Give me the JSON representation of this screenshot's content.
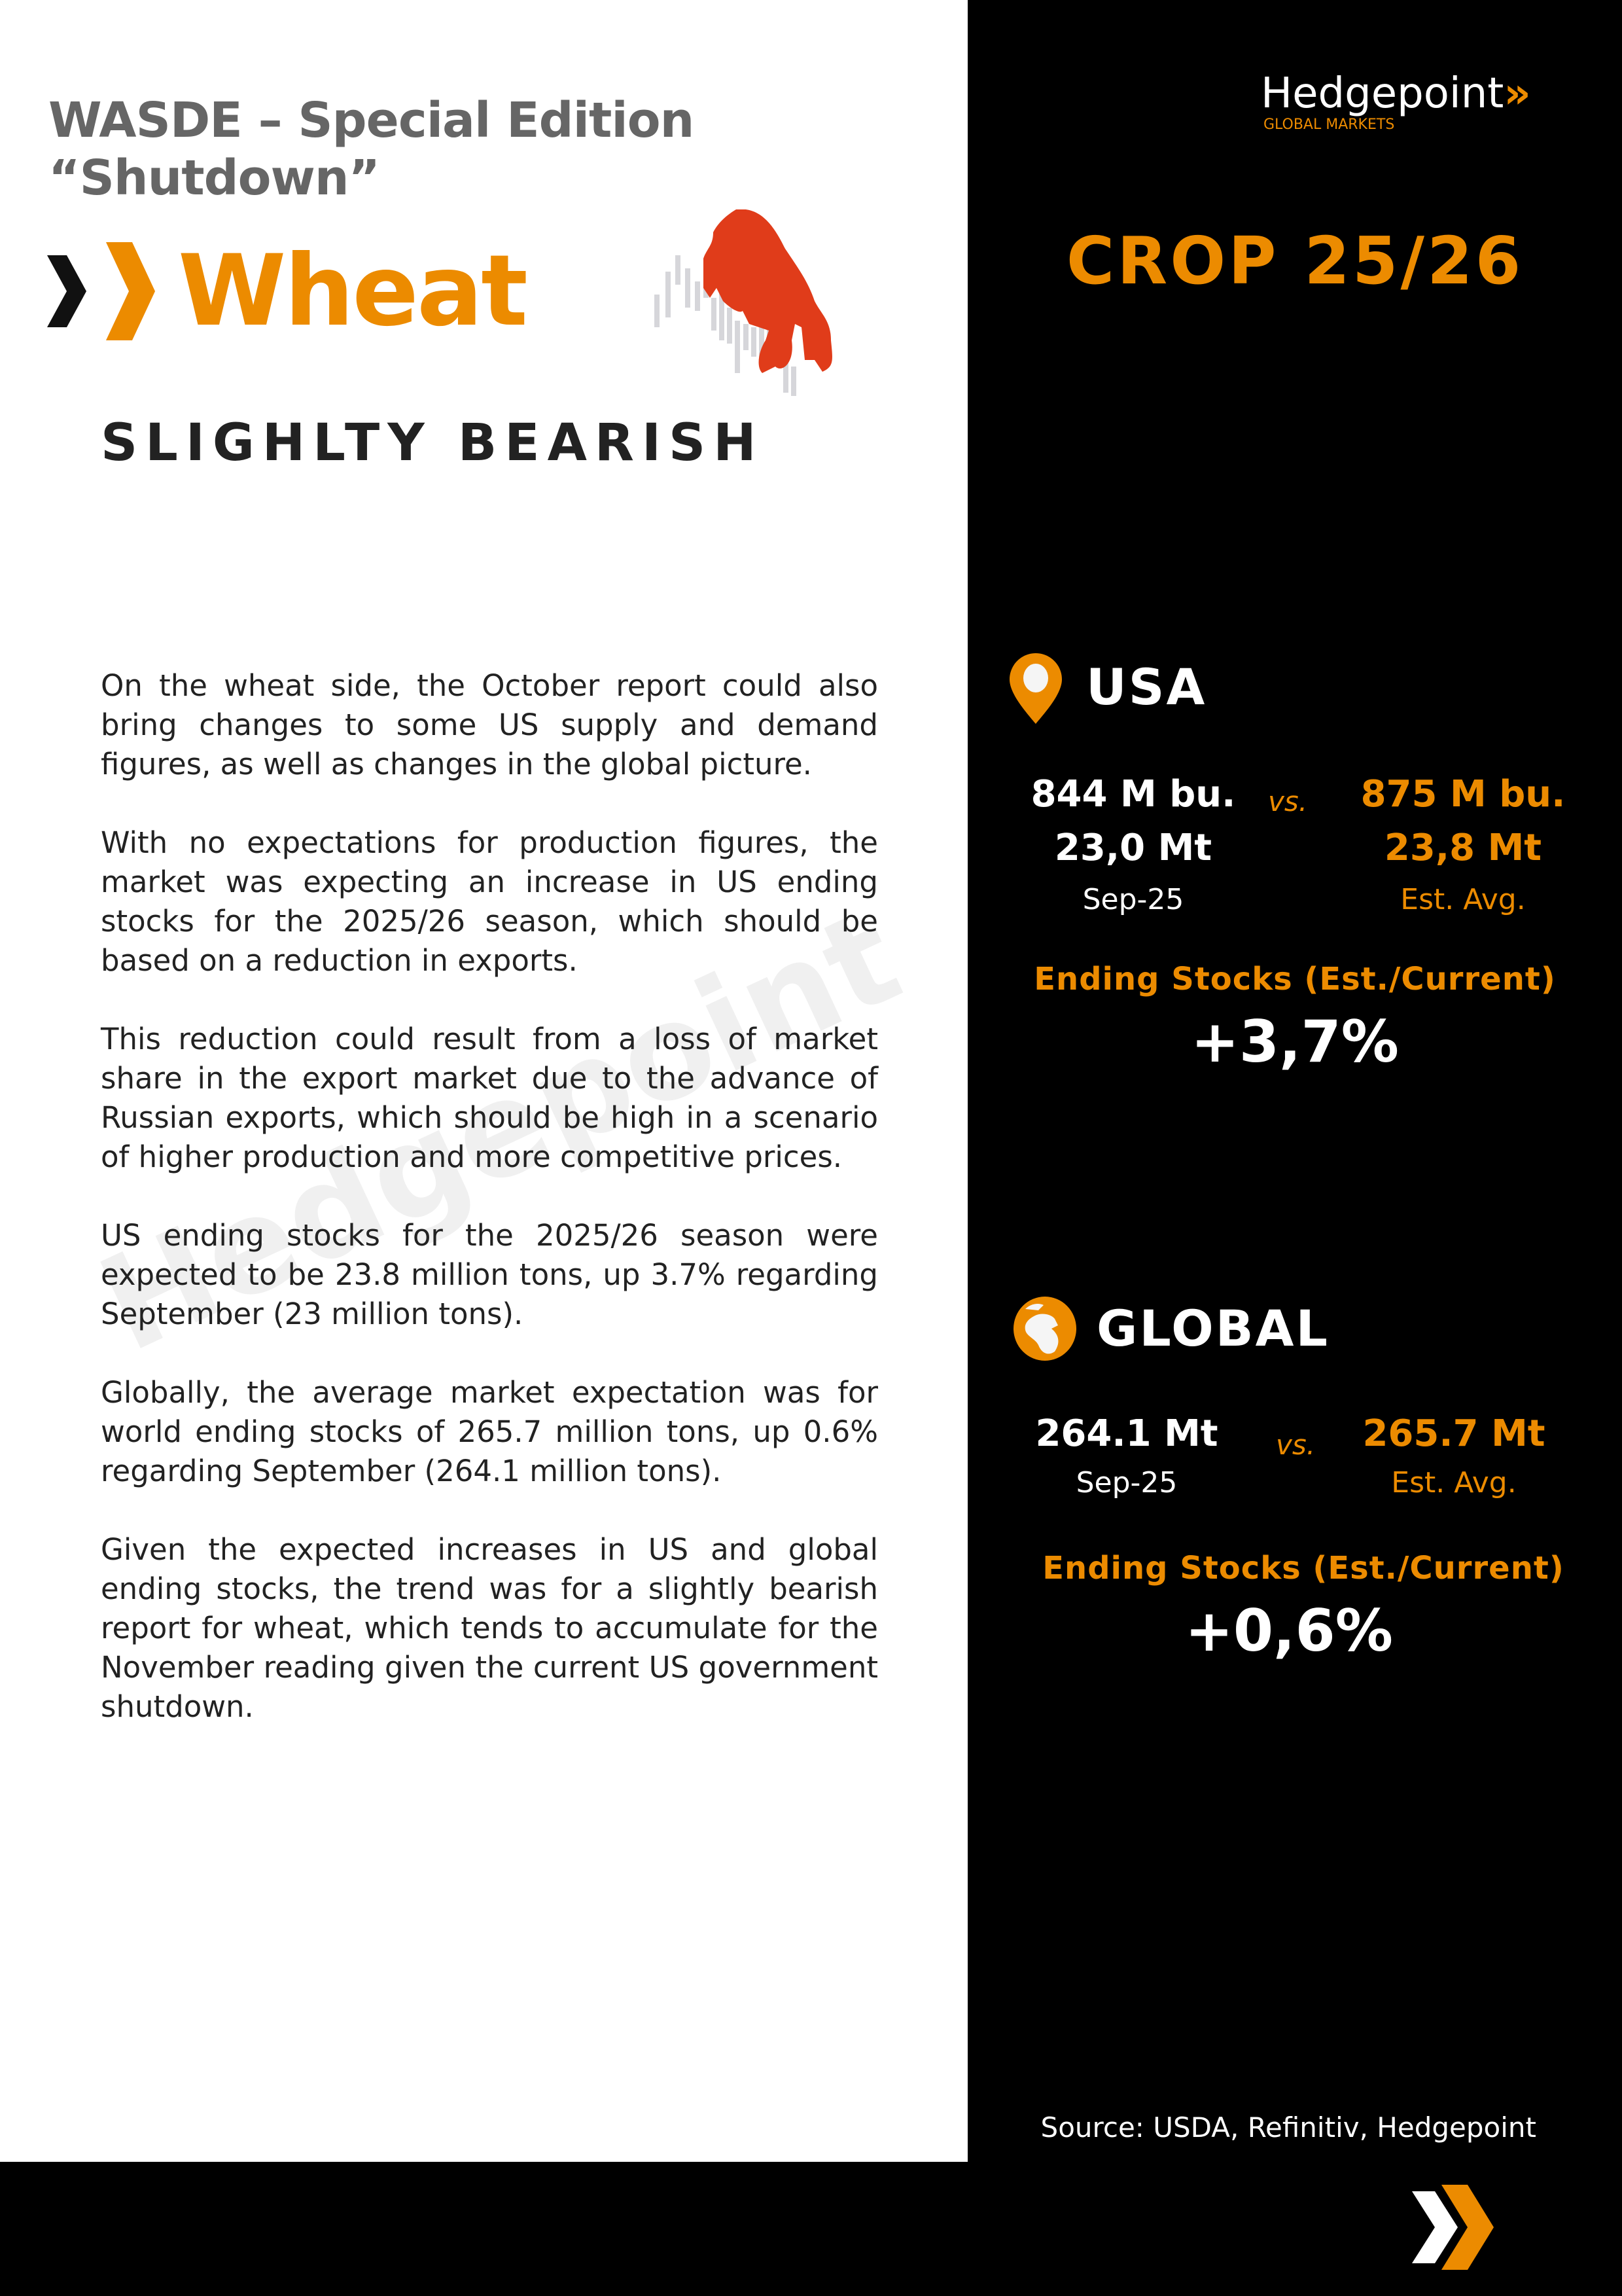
{
  "header": {
    "title_line1": "WASDE – Special Edition",
    "title_line2": "“Shutdown”",
    "commodity": "Wheat",
    "sentiment": "SLIGHLTY BEARISH",
    "bull_bear_icon": "bear-icon"
  },
  "body": [
    "On the wheat side, the October report could also bring changes to some US supply and demand figures, as well as changes in the global picture.",
    "With no expectations for production figures, the market was expecting an increase in US ending stocks for the 2025/26 season, which should be based on a reduction in exports.",
    "This reduction could result from a loss of market share in the export market due to the advance of Russian exports, which should be high in a scenario of higher production and more competitive prices.",
    "US ending stocks for the 2025/26 season were expected to be 23.8 million tons, up 3.7% regarding September (23 million tons).",
    "Globally, the average market expectation was for world ending stocks of 265.7 million tons, up 0.6% regarding September (264.1 million tons).",
    "Given the expected increases in US and global ending stocks, the trend was for a slightly bearish report for wheat, which tends to accumulate for the November reading given the current US government shutdown."
  ],
  "watermark": "Hedgepoint",
  "logo": {
    "name": "Hedgepoint",
    "tagline": "GLOBAL MARKETS"
  },
  "crop": "CROP 25/26",
  "usa": {
    "region": "USA",
    "icon": "location-pin-icon",
    "current_bu": "844 M bu.",
    "current_mt": "23,0 Mt",
    "current_label": "Sep-25",
    "vs": "vs.",
    "est_bu": "875 M bu.",
    "est_mt": "23,8 Mt",
    "est_label": "Est. Avg.",
    "metric": "Ending Stocks (Est./Current)",
    "change": "+3,7%"
  },
  "global": {
    "region": "GLOBAL",
    "icon": "globe-icon",
    "current_mt": "264.1 Mt",
    "current_label": "Sep-25",
    "vs": "vs.",
    "est_mt": "265.7 Mt",
    "est_label": "Est. Avg.",
    "metric": "Ending Stocks (Est./Current)",
    "change": "+0,6%"
  },
  "source": "Source: USDA, Refinitiv, Hedgepoint",
  "colors": {
    "accent": "#ec8b00",
    "bear": "#e03c1a",
    "panel": "#000000",
    "title_gray": "#666666"
  }
}
